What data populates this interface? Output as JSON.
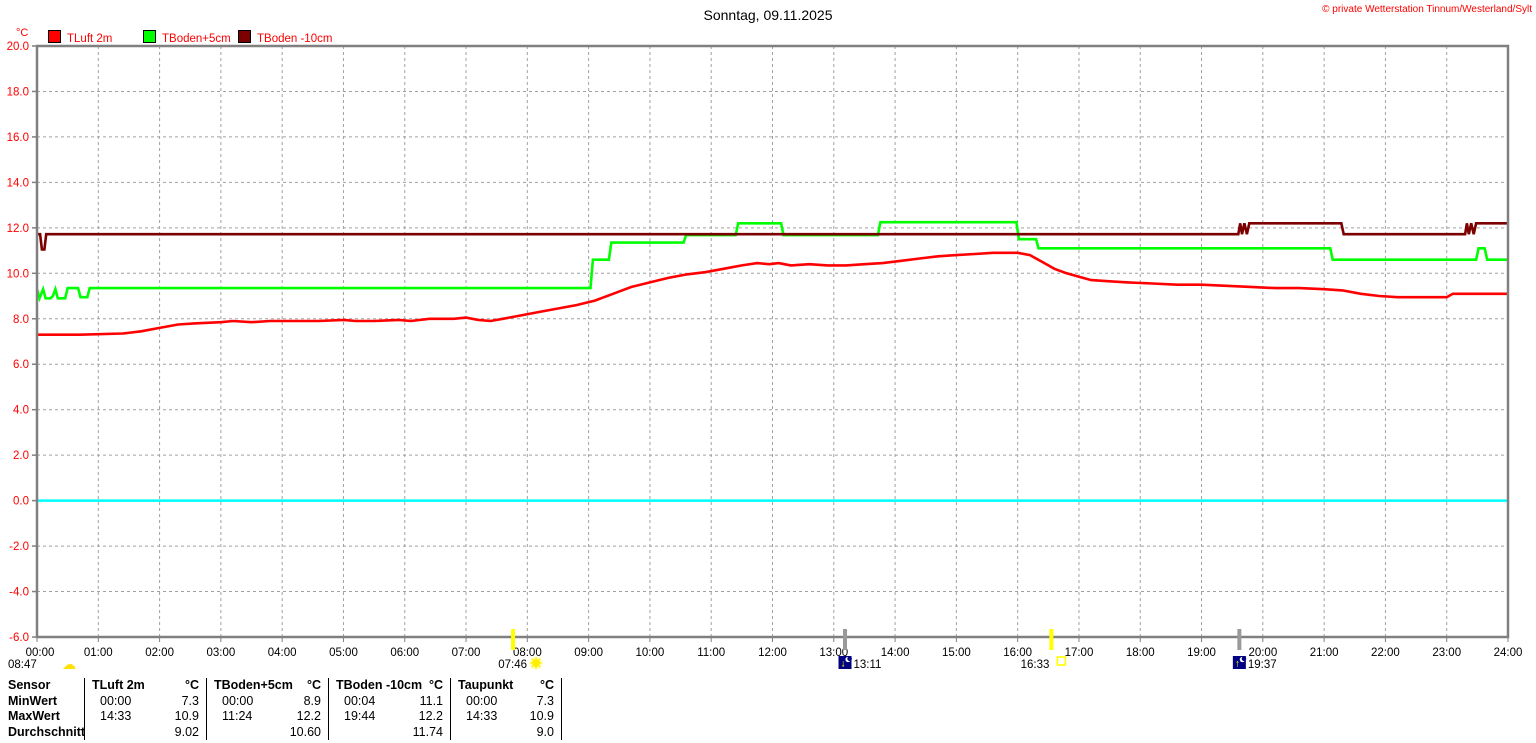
{
  "header": {
    "title": "Sonntag, 09.11.2025",
    "copyright": "© private Wetterstation Tinnum/Westerland/Sylt"
  },
  "legend": {
    "axis_unit": "°C",
    "items": [
      {
        "label": "TLuft 2m",
        "color": "#ff0000"
      },
      {
        "label": "TBoden+5cm",
        "color": "#00ff00"
      },
      {
        "label": "TBoden -10cm",
        "color": "#7c0000"
      }
    ]
  },
  "chart_data": {
    "type": "line",
    "title": "Sonntag, 09.11.2025",
    "ylabel": "°C",
    "xlabel": "",
    "ylim": [
      -6,
      20
    ],
    "y_tick_step": 2,
    "x_range_hours": [
      0,
      24
    ],
    "x_tick_labels": [
      "00:00",
      "01:00",
      "02:00",
      "03:00",
      "04:00",
      "05:00",
      "06:00",
      "07:00",
      "08:00",
      "09:00",
      "10:00",
      "11:00",
      "12:00",
      "13:00",
      "14:00",
      "15:00",
      "16:00",
      "17:00",
      "18:00",
      "19:00",
      "20:00",
      "21:00",
      "22:00",
      "23:00",
      "24:00"
    ],
    "grid": true,
    "grid_color": "#a0a0a0",
    "border_color": "#808080",
    "zero_line": {
      "value": 0.0,
      "color": "#00ffff"
    },
    "series": [
      {
        "name": "TBoden+5cm",
        "color": "#00ff00",
        "points": [
          [
            0,
            9.3
          ],
          [
            0.04,
            8.9
          ],
          [
            0.1,
            9.3
          ],
          [
            0.14,
            8.9
          ],
          [
            0.22,
            8.9
          ],
          [
            0.26,
            9.0
          ],
          [
            0.3,
            9.3
          ],
          [
            0.34,
            8.9
          ],
          [
            0.46,
            8.9
          ],
          [
            0.5,
            9.35
          ],
          [
            0.67,
            9.35
          ],
          [
            0.71,
            8.95
          ],
          [
            0.82,
            8.95
          ],
          [
            0.86,
            9.35
          ],
          [
            9.03,
            9.35
          ],
          [
            9.07,
            10.6
          ],
          [
            9.33,
            10.6
          ],
          [
            9.37,
            11.35
          ],
          [
            10.55,
            11.35
          ],
          [
            10.59,
            11.68
          ],
          [
            11.4,
            11.68
          ],
          [
            11.44,
            12.2
          ],
          [
            12.14,
            12.2
          ],
          [
            12.18,
            11.68
          ],
          [
            13.72,
            11.68
          ],
          [
            13.76,
            12.25
          ],
          [
            15.98,
            12.25
          ],
          [
            16.02,
            11.5
          ],
          [
            16.3,
            11.5
          ],
          [
            16.34,
            11.1
          ],
          [
            21.1,
            11.1
          ],
          [
            21.14,
            10.6
          ],
          [
            23.48,
            10.6
          ],
          [
            23.52,
            11.1
          ],
          [
            23.62,
            11.1
          ],
          [
            23.66,
            10.6
          ],
          [
            24,
            10.6
          ]
        ]
      },
      {
        "name": "TBoden -10cm",
        "color": "#7c0000",
        "points": [
          [
            0,
            11.72
          ],
          [
            0.05,
            11.72
          ],
          [
            0.08,
            11.05
          ],
          [
            0.12,
            11.05
          ],
          [
            0.15,
            11.72
          ],
          [
            19.6,
            11.72
          ],
          [
            19.63,
            12.2
          ],
          [
            19.66,
            11.72
          ],
          [
            19.7,
            12.2
          ],
          [
            19.74,
            11.72
          ],
          [
            19.78,
            12.2
          ],
          [
            21.28,
            12.2
          ],
          [
            21.32,
            11.72
          ],
          [
            23.3,
            11.72
          ],
          [
            23.33,
            12.2
          ],
          [
            23.36,
            11.72
          ],
          [
            23.4,
            12.2
          ],
          [
            23.44,
            11.72
          ],
          [
            23.48,
            12.2
          ],
          [
            24,
            12.2
          ]
        ]
      },
      {
        "name": "TLuft 2m",
        "color": "#ff0000",
        "points": [
          [
            0,
            7.3
          ],
          [
            0.7,
            7.3
          ],
          [
            1.4,
            7.35
          ],
          [
            1.7,
            7.45
          ],
          [
            2,
            7.6
          ],
          [
            2.3,
            7.75
          ],
          [
            2.6,
            7.8
          ],
          [
            3,
            7.85
          ],
          [
            3.2,
            7.9
          ],
          [
            3.5,
            7.85
          ],
          [
            3.8,
            7.9
          ],
          [
            4.2,
            7.9
          ],
          [
            4.6,
            7.9
          ],
          [
            5,
            7.95
          ],
          [
            5.2,
            7.9
          ],
          [
            5.5,
            7.9
          ],
          [
            5.9,
            7.95
          ],
          [
            6.1,
            7.9
          ],
          [
            6.4,
            8
          ],
          [
            6.8,
            8
          ],
          [
            7,
            8.05
          ],
          [
            7.2,
            7.95
          ],
          [
            7.4,
            7.9
          ],
          [
            7.6,
            8
          ],
          [
            7.9,
            8.15
          ],
          [
            8.2,
            8.3
          ],
          [
            8.5,
            8.45
          ],
          [
            8.8,
            8.6
          ],
          [
            9.1,
            8.8
          ],
          [
            9.4,
            9.1
          ],
          [
            9.7,
            9.4
          ],
          [
            10,
            9.6
          ],
          [
            10.3,
            9.8
          ],
          [
            10.6,
            9.95
          ],
          [
            10.9,
            10.05
          ],
          [
            11.2,
            10.2
          ],
          [
            11.5,
            10.35
          ],
          [
            11.75,
            10.45
          ],
          [
            11.95,
            10.4
          ],
          [
            12.1,
            10.45
          ],
          [
            12.3,
            10.35
          ],
          [
            12.6,
            10.4
          ],
          [
            12.9,
            10.35
          ],
          [
            13.2,
            10.35
          ],
          [
            13.5,
            10.4
          ],
          [
            13.8,
            10.45
          ],
          [
            14.1,
            10.55
          ],
          [
            14.4,
            10.65
          ],
          [
            14.7,
            10.75
          ],
          [
            15,
            10.8
          ],
          [
            15.3,
            10.85
          ],
          [
            15.6,
            10.9
          ],
          [
            16,
            10.9
          ],
          [
            16.2,
            10.8
          ],
          [
            16.4,
            10.5
          ],
          [
            16.6,
            10.2
          ],
          [
            16.8,
            10
          ],
          [
            17,
            9.85
          ],
          [
            17.2,
            9.7
          ],
          [
            17.5,
            9.65
          ],
          [
            17.8,
            9.6
          ],
          [
            18.2,
            9.55
          ],
          [
            18.6,
            9.5
          ],
          [
            19,
            9.5
          ],
          [
            19.4,
            9.45
          ],
          [
            19.8,
            9.4
          ],
          [
            20.2,
            9.35
          ],
          [
            20.6,
            9.35
          ],
          [
            21,
            9.3
          ],
          [
            21.3,
            9.25
          ],
          [
            21.6,
            9.1
          ],
          [
            21.9,
            9
          ],
          [
            22.2,
            8.95
          ],
          [
            22.6,
            8.95
          ],
          [
            23,
            8.95
          ],
          [
            23.1,
            9.1
          ],
          [
            24,
            9.1
          ]
        ]
      }
    ],
    "events": [
      {
        "time": "08:47",
        "icon": "cloud",
        "position_hours": null,
        "tick": null
      },
      {
        "time": "07:46",
        "icon": "sun",
        "position_hours": 7.767,
        "tick": "#ffff00"
      },
      {
        "time": "13:11",
        "icon": "moon-down",
        "position_hours": 13.183,
        "tick": "#9a9a9a"
      },
      {
        "time": "16:33",
        "icon": "square",
        "position_hours": 16.55,
        "tick": "#ffff00"
      },
      {
        "time": "19:37",
        "icon": "moon-up",
        "position_hours": 19.617,
        "tick": "#9a9a9a"
      }
    ]
  },
  "stats_table": {
    "corner": "Sensor",
    "row_labels": [
      "MinWert",
      "MaxWert",
      "Durchschnitt"
    ],
    "unit": "°C",
    "columns": [
      {
        "name": "TLuft 2m",
        "min": [
          "00:00",
          "7.3"
        ],
        "max": [
          "14:33",
          "10.9"
        ],
        "avg": "9.02"
      },
      {
        "name": "TBoden+5cm",
        "min": [
          "00:00",
          "8.9"
        ],
        "max": [
          "11:24",
          "12.2"
        ],
        "avg": "10.60"
      },
      {
        "name": "TBoden -10cm",
        "min": [
          "00:04",
          "11.1"
        ],
        "max": [
          "19:44",
          "12.2"
        ],
        "avg": "11.74"
      },
      {
        "name": "Taupunkt",
        "min": [
          "00:00",
          "7.3"
        ],
        "max": [
          "14:33",
          "10.9"
        ],
        "avg": "9.0"
      }
    ]
  }
}
